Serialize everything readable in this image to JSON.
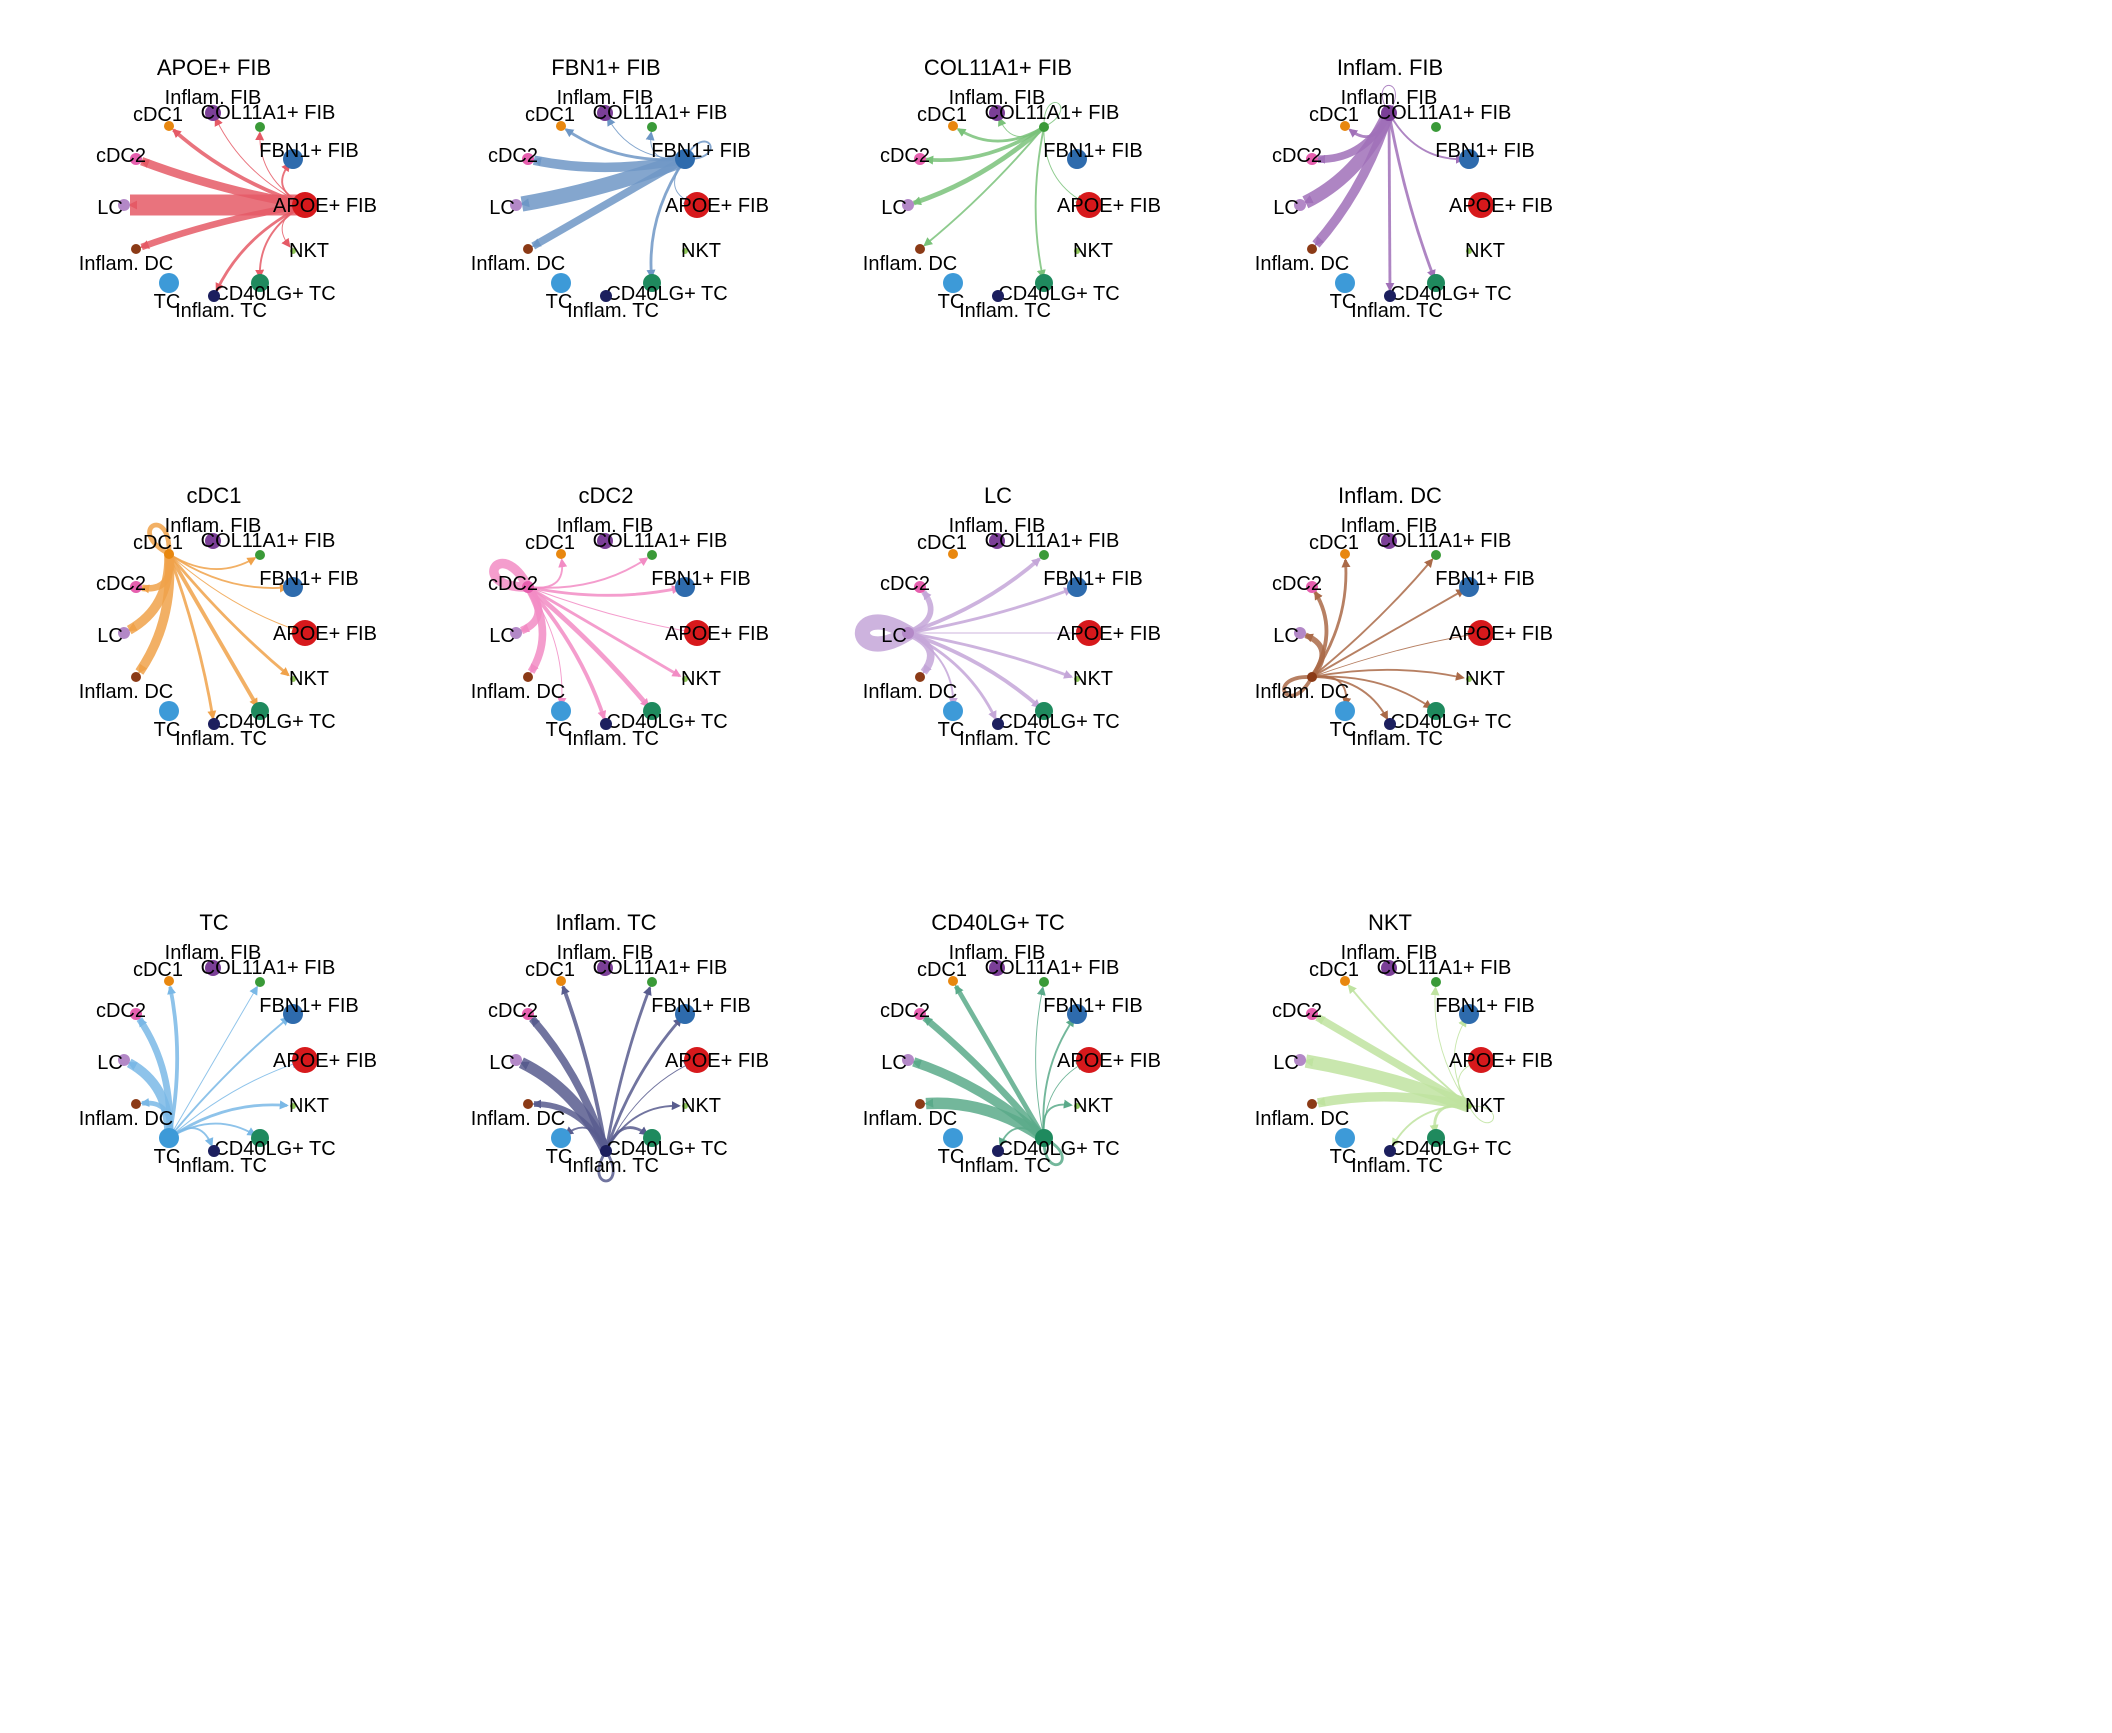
{
  "nodes": [
    {
      "id": "Inflam. FIB",
      "color": "#7b3f97",
      "size": 8
    },
    {
      "id": "COL11A1+ FIB",
      "color": "#3a9a38",
      "size": 5
    },
    {
      "id": "FBN1+ FIB",
      "color": "#2e6bad",
      "size": 10
    },
    {
      "id": "APOE+ FIB",
      "color": "#d7191c",
      "size": 13
    },
    {
      "id": "NKT",
      "color": "#8fc65a",
      "size": 3
    },
    {
      "id": "CD40LG+ TC",
      "color": "#1f8a5e",
      "size": 9
    },
    {
      "id": "Inflam. TC",
      "color": "#1c1f5e",
      "size": 6
    },
    {
      "id": "TC",
      "color": "#3d9ad8",
      "size": 10
    },
    {
      "id": "Inflam. DC",
      "color": "#8b3a16",
      "size": 5
    },
    {
      "id": "LC",
      "color": "#b388c7",
      "size": 6
    },
    {
      "id": "cDC2",
      "color": "#e65fae",
      "size": 6
    },
    {
      "id": "cDC1",
      "color": "#e8870f",
      "size": 5
    }
  ],
  "panels": [
    {
      "title": "APOE+ FIB",
      "source": "APOE+ FIB",
      "edge_color": "#e55a66",
      "edges": [
        {
          "target": "LC",
          "weight": 22
        },
        {
          "target": "cDC2",
          "weight": 9
        },
        {
          "target": "Inflam. DC",
          "weight": 7
        },
        {
          "target": "cDC1",
          "weight": 4
        },
        {
          "target": "Inflam. TC",
          "weight": 3
        },
        {
          "target": "CD40LG+ TC",
          "weight": 2
        },
        {
          "target": "FBN1+ FIB",
          "weight": 2
        },
        {
          "target": "Inflam. FIB",
          "weight": 1
        },
        {
          "target": "COL11A1+ FIB",
          "weight": 1
        },
        {
          "target": "NKT",
          "weight": 1
        }
      ]
    },
    {
      "title": "FBN1+ FIB",
      "source": "FBN1+ FIB",
      "edge_color": "#6e97c6",
      "edges": [
        {
          "target": "LC",
          "weight": 16
        },
        {
          "target": "cDC2",
          "weight": 10
        },
        {
          "target": "Inflam. DC",
          "weight": 8
        },
        {
          "target": "CD40LG+ TC",
          "weight": 3
        },
        {
          "target": "cDC1",
          "weight": 3
        },
        {
          "target": "Inflam. FIB",
          "weight": 1
        },
        {
          "target": "COL11A1+ FIB",
          "weight": 1
        },
        {
          "target": "APOE+ FIB",
          "weight": 1
        },
        {
          "target": "FBN1+ FIB",
          "weight": 2
        }
      ]
    },
    {
      "title": "COL11A1+ FIB",
      "source": "COL11A1+ FIB",
      "edge_color": "#7ac27a",
      "edges": [
        {
          "target": "cDC2",
          "weight": 4
        },
        {
          "target": "LC",
          "weight": 5
        },
        {
          "target": "cDC1",
          "weight": 3
        },
        {
          "target": "Inflam. DC",
          "weight": 2
        },
        {
          "target": "CD40LG+ TC",
          "weight": 2
        },
        {
          "target": "APOE+ FIB",
          "weight": 1
        },
        {
          "target": "Inflam. FIB",
          "weight": 1
        },
        {
          "target": "COL11A1+ FIB",
          "weight": 1
        }
      ]
    },
    {
      "title": "Inflam. FIB",
      "source": "Inflam. FIB",
      "edge_color": "#a070b8",
      "edges": [
        {
          "target": "LC",
          "weight": 14
        },
        {
          "target": "Inflam. DC",
          "weight": 10
        },
        {
          "target": "cDC2",
          "weight": 8
        },
        {
          "target": "Inflam. TC",
          "weight": 3
        },
        {
          "target": "CD40LG+ TC",
          "weight": 3
        },
        {
          "target": "cDC1",
          "weight": 3
        },
        {
          "target": "FBN1+ FIB",
          "weight": 2
        },
        {
          "target": "Inflam. FIB",
          "weight": 1
        }
      ]
    },
    {
      "title": "cDC1",
      "source": "cDC1",
      "edge_color": "#f0a24a",
      "edges": [
        {
          "target": "Inflam. DC",
          "weight": 10
        },
        {
          "target": "LC",
          "weight": 10
        },
        {
          "target": "cDC2",
          "weight": 7
        },
        {
          "target": "CD40LG+ TC",
          "weight": 4
        },
        {
          "target": "Inflam. TC",
          "weight": 3
        },
        {
          "target": "NKT",
          "weight": 3
        },
        {
          "target": "COL11A1+ FIB",
          "weight": 2
        },
        {
          "target": "FBN1+ FIB",
          "weight": 2
        },
        {
          "target": "APOE+ FIB",
          "weight": 1
        },
        {
          "target": "cDC1",
          "weight": 5
        }
      ]
    },
    {
      "title": "cDC2",
      "source": "cDC2",
      "edge_color": "#f28cc4",
      "edges": [
        {
          "target": "Inflam. DC",
          "weight": 8
        },
        {
          "target": "LC",
          "weight": 8
        },
        {
          "target": "CD40LG+ TC",
          "weight": 5
        },
        {
          "target": "Inflam. TC",
          "weight": 4
        },
        {
          "target": "NKT",
          "weight": 3
        },
        {
          "target": "FBN1+ FIB",
          "weight": 3
        },
        {
          "target": "COL11A1+ FIB",
          "weight": 2
        },
        {
          "target": "cDC1",
          "weight": 2
        },
        {
          "target": "TC",
          "weight": 1
        },
        {
          "target": "APOE+ FIB",
          "weight": 1
        },
        {
          "target": "cDC2",
          "weight": 10
        }
      ]
    },
    {
      "title": "LC",
      "source": "LC",
      "edge_color": "#c4a6d8",
      "edges": [
        {
          "target": "Inflam. DC",
          "weight": 8
        },
        {
          "target": "cDC2",
          "weight": 6
        },
        {
          "target": "CD40LG+ TC",
          "weight": 4
        },
        {
          "target": "COL11A1+ FIB",
          "weight": 4
        },
        {
          "target": "Inflam. TC",
          "weight": 3
        },
        {
          "target": "NKT",
          "weight": 3
        },
        {
          "target": "FBN1+ FIB",
          "weight": 3
        },
        {
          "target": "TC",
          "weight": 2
        },
        {
          "target": "APOE+ FIB",
          "weight": 1
        },
        {
          "target": "LC",
          "weight": 16
        }
      ]
    },
    {
      "title": "Inflam. DC",
      "source": "Inflam. DC",
      "edge_color": "#aa6a48",
      "edges": [
        {
          "target": "LC",
          "weight": 6
        },
        {
          "target": "cDC2",
          "weight": 4
        },
        {
          "target": "cDC1",
          "weight": 3
        },
        {
          "target": "FBN1+ FIB",
          "weight": 2
        },
        {
          "target": "COL11A1+ FIB",
          "weight": 2
        },
        {
          "target": "CD40LG+ TC",
          "weight": 2
        },
        {
          "target": "Inflam. TC",
          "weight": 2
        },
        {
          "target": "NKT",
          "weight": 2
        },
        {
          "target": "TC",
          "weight": 2
        },
        {
          "target": "APOE+ FIB",
          "weight": 1
        },
        {
          "target": "Inflam. DC",
          "weight": 4
        }
      ]
    },
    {
      "title": "TC",
      "source": "TC",
      "edge_color": "#7ab8e6",
      "edges": [
        {
          "target": "LC",
          "weight": 10
        },
        {
          "target": "cDC2",
          "weight": 7
        },
        {
          "target": "Inflam. DC",
          "weight": 5
        },
        {
          "target": "cDC1",
          "weight": 4
        },
        {
          "target": "NKT",
          "weight": 3
        },
        {
          "target": "FBN1+ FIB",
          "weight": 2
        },
        {
          "target": "Inflam. TC",
          "weight": 2
        },
        {
          "target": "CD40LG+ TC",
          "weight": 2
        },
        {
          "target": "APOE+ FIB",
          "weight": 1
        },
        {
          "target": "COL11A1+ FIB",
          "weight": 1
        }
      ]
    },
    {
      "title": "Inflam. TC",
      "source": "Inflam. TC",
      "edge_color": "#585c8e",
      "edges": [
        {
          "target": "LC",
          "weight": 12
        },
        {
          "target": "cDC2",
          "weight": 8
        },
        {
          "target": "Inflam. DC",
          "weight": 6
        },
        {
          "target": "cDC1",
          "weight": 4
        },
        {
          "target": "COL11A1+ FIB",
          "weight": 3
        },
        {
          "target": "FBN1+ FIB",
          "weight": 3
        },
        {
          "target": "CD40LG+ TC",
          "weight": 3
        },
        {
          "target": "NKT",
          "weight": 2
        },
        {
          "target": "APOE+ FIB",
          "weight": 1
        },
        {
          "target": "TC",
          "weight": 2
        },
        {
          "target": "Inflam. TC",
          "weight": 3
        }
      ]
    },
    {
      "title": "CD40LG+ TC",
      "source": "CD40LG+ TC",
      "edge_color": "#5aaa8a",
      "edges": [
        {
          "target": "Inflam. DC",
          "weight": 12
        },
        {
          "target": "LC",
          "weight": 10
        },
        {
          "target": "cDC2",
          "weight": 7
        },
        {
          "target": "cDC1",
          "weight": 5
        },
        {
          "target": "FBN1+ FIB",
          "weight": 2
        },
        {
          "target": "NKT",
          "weight": 2
        },
        {
          "target": "Inflam. TC",
          "weight": 2
        },
        {
          "target": "COL11A1+ FIB",
          "weight": 1
        },
        {
          "target": "APOE+ FIB",
          "weight": 1
        },
        {
          "target": "CD40LG+ TC",
          "weight": 3
        }
      ]
    },
    {
      "title": "NKT",
      "source": "NKT",
      "edge_color": "#bfe3a0",
      "edges": [
        {
          "target": "LC",
          "weight": 14
        },
        {
          "target": "Inflam. DC",
          "weight": 10
        },
        {
          "target": "cDC2",
          "weight": 8
        },
        {
          "target": "CD40LG+ TC",
          "weight": 3
        },
        {
          "target": "cDC1",
          "weight": 2
        },
        {
          "target": "Inflam. TC",
          "weight": 2
        },
        {
          "target": "COL11A1+ FIB",
          "weight": 1
        },
        {
          "target": "FBN1+ FIB",
          "weight": 1
        },
        {
          "target": "APOE+ FIB",
          "weight": 1
        },
        {
          "target": "NKT",
          "weight": 1
        }
      ]
    }
  ]
}
